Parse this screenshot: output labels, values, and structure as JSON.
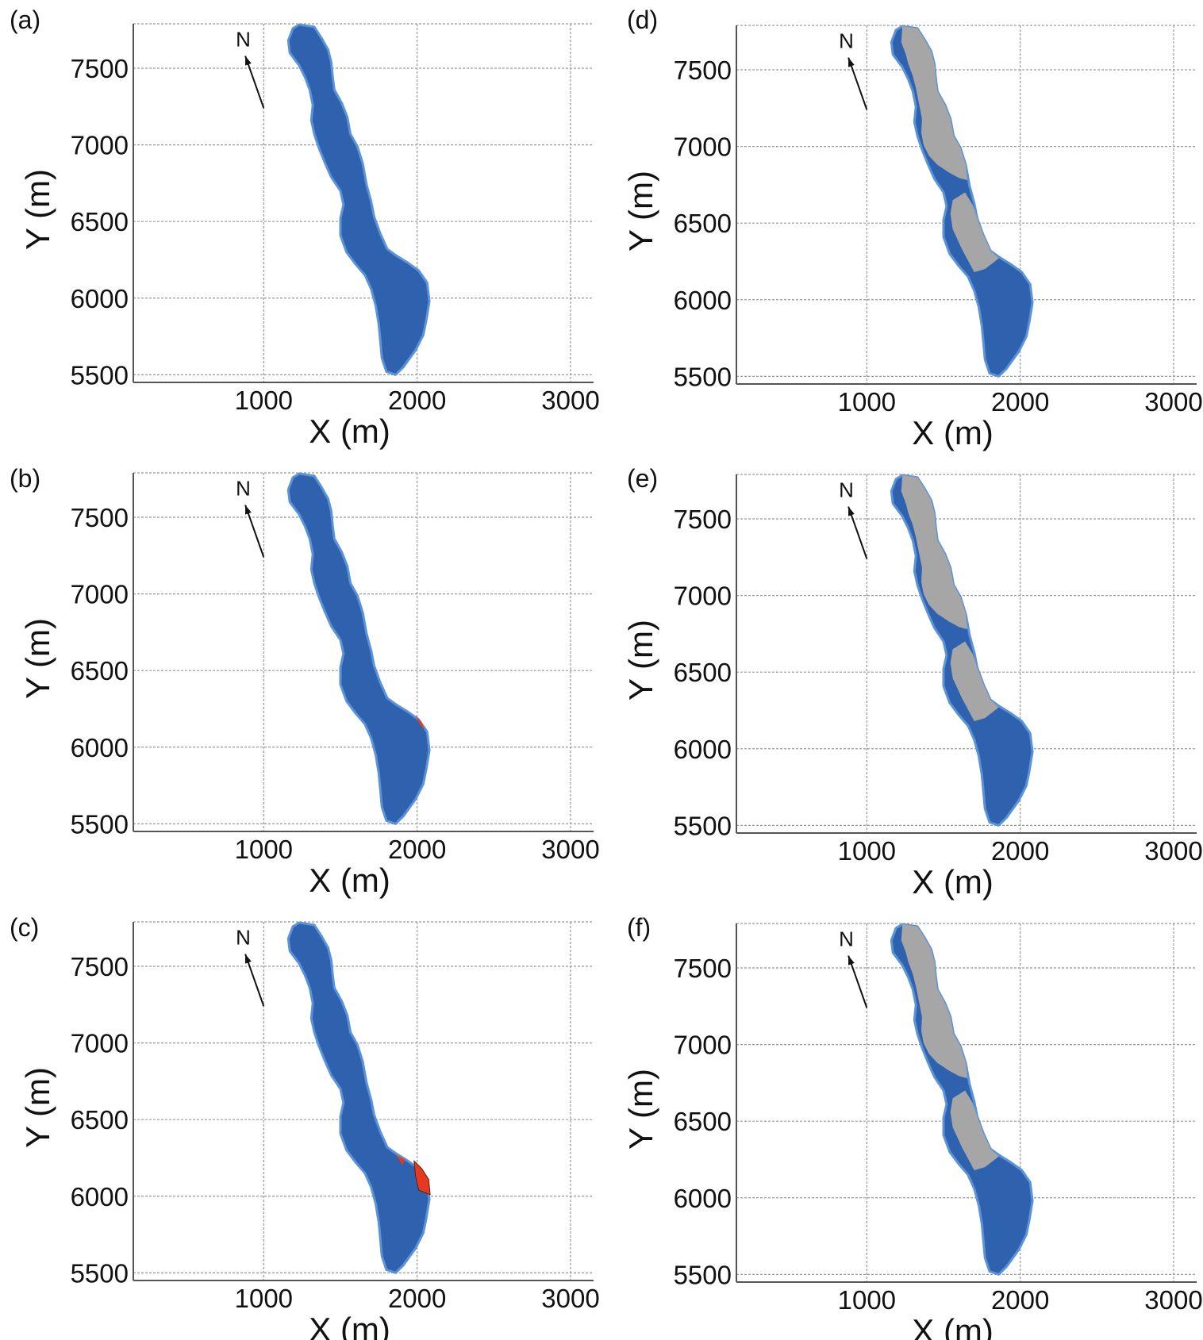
{
  "chart_data": [
    {
      "panel": "(a)",
      "type": "map",
      "xlabel": "X (m)",
      "ylabel": "Y (m)",
      "xticks": [
        1000,
        2000,
        3000
      ],
      "yticks": [
        5500,
        6000,
        6500,
        7000,
        7500
      ],
      "xlim": [
        150,
        3150
      ],
      "ylim": [
        5450,
        7790
      ],
      "grid": true,
      "north_label": "N",
      "colors": {
        "lake": "#2f62ae",
        "shore": "#5b93d6"
      }
    },
    {
      "panel": "(b)",
      "type": "map",
      "xlabel": "X (m)",
      "ylabel": "Y (m)",
      "xticks": [
        1000,
        2000,
        3000
      ],
      "yticks": [
        5500,
        6000,
        6500,
        7000,
        7500
      ],
      "xlim": [
        150,
        3150
      ],
      "ylim": [
        5450,
        7790
      ],
      "grid": true,
      "north_label": "N",
      "colors": {
        "lake": "#2f62ae",
        "shore": "#5b93d6",
        "highlight": "#e53a22"
      }
    },
    {
      "panel": "(c)",
      "type": "map",
      "xlabel": "X (m)",
      "ylabel": "Y (m)",
      "xticks": [
        1000,
        2000,
        3000
      ],
      "yticks": [
        5500,
        6000,
        6500,
        7000,
        7500
      ],
      "xlim": [
        150,
        3150
      ],
      "ylim": [
        5450,
        7790
      ],
      "grid": true,
      "north_label": "N",
      "colors": {
        "lake": "#2f62ae",
        "shore": "#5b93d6",
        "highlight": "#e53a22"
      }
    },
    {
      "panel": "(d)",
      "type": "map",
      "xlabel": "X (m)",
      "ylabel": "Y (m)",
      "xticks": [
        1000,
        2000,
        3000
      ],
      "yticks": [
        5500,
        6000,
        6500,
        7000,
        7500
      ],
      "xlim": [
        150,
        3150
      ],
      "ylim": [
        5450,
        7790
      ],
      "grid": true,
      "north_label": "N",
      "colors": {
        "lake": "#2f62ae",
        "shore": "#5b93d6",
        "dry": "#a6a6a6"
      }
    },
    {
      "panel": "(e)",
      "type": "map",
      "xlabel": "X (m)",
      "ylabel": "Y (m)",
      "xticks": [
        1000,
        2000,
        3000
      ],
      "yticks": [
        5500,
        6000,
        6500,
        7000,
        7500
      ],
      "xlim": [
        150,
        3150
      ],
      "ylim": [
        5450,
        7790
      ],
      "grid": true,
      "north_label": "N",
      "colors": {
        "lake": "#2f62ae",
        "shore": "#5b93d6",
        "dry": "#a6a6a6"
      }
    },
    {
      "panel": "(f)",
      "type": "map",
      "xlabel": "X (m)",
      "ylabel": "Y (m)",
      "xticks": [
        1000,
        2000,
        3000
      ],
      "yticks": [
        5500,
        6000,
        6500,
        7000,
        7500
      ],
      "xlim": [
        150,
        3150
      ],
      "ylim": [
        5450,
        7790
      ],
      "grid": true,
      "north_label": "N",
      "colors": {
        "lake": "#2f62ae",
        "shore": "#5b93d6",
        "dry": "#a6a6a6"
      }
    }
  ]
}
